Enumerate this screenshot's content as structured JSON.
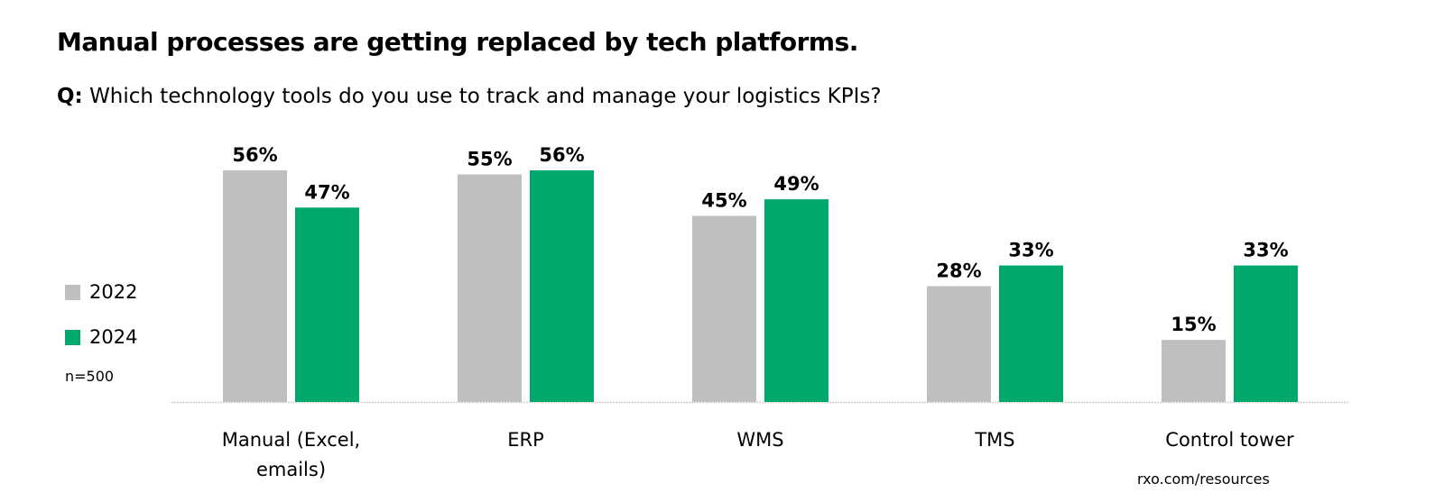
{
  "title": "Manual processes are getting replaced by tech platforms.",
  "subtitle_prefix": "Q:",
  "subtitle": "Which technology tools do you use to track and manage your logistics KPIs?",
  "sample_note": "n=500",
  "source": "rxo.com/resources",
  "chart_data": {
    "type": "bar",
    "categories": [
      "Manual (Excel, emails)",
      "ERP",
      "WMS",
      "TMS",
      "Control tower"
    ],
    "series": [
      {
        "name": "2022",
        "color": "#bfbfbf",
        "values": [
          56,
          55,
          45,
          28,
          15
        ]
      },
      {
        "name": "2024",
        "color": "#00a86b",
        "values": [
          47,
          56,
          49,
          33,
          33
        ]
      }
    ],
    "value_suffix": "%",
    "ylim": [
      0,
      56
    ],
    "grid": false,
    "legend_placement": "left"
  }
}
